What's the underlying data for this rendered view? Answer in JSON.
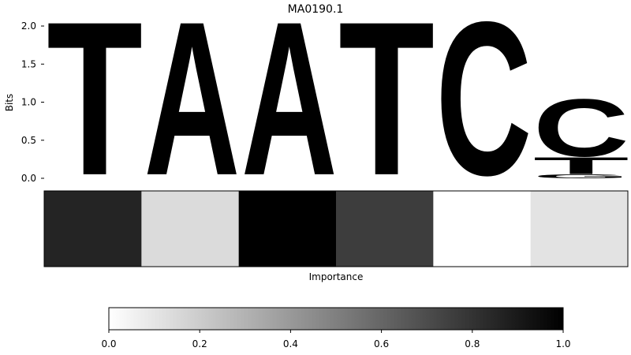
{
  "chart_data": [
    {
      "type": "sequence-logo",
      "title": "MA0190.1",
      "ylabel": "Bits",
      "ylim": [
        0,
        2.0
      ],
      "yticks": [
        "0.0",
        "0.5",
        "1.0",
        "1.5",
        "2.0"
      ],
      "letter_colors": {
        "A": "#4ea64a",
        "C": "#4a4af8",
        "G": "#f5b03c",
        "T": "#fa4c4e"
      },
      "positions": [
        {
          "stack": [
            {
              "letter": "T",
              "bits": 2.0
            }
          ]
        },
        {
          "stack": [
            {
              "letter": "A",
              "bits": 2.0
            }
          ]
        },
        {
          "stack": [
            {
              "letter": "A",
              "bits": 2.0
            }
          ]
        },
        {
          "stack": [
            {
              "letter": "T",
              "bits": 2.0
            }
          ]
        },
        {
          "stack": [
            {
              "letter": "C",
              "bits": 2.0
            }
          ]
        },
        {
          "stack": [
            {
              "letter": "G",
              "bits": 0.05
            },
            {
              "letter": "T",
              "bits": 0.22
            },
            {
              "letter": "C",
              "bits": 0.75
            }
          ]
        }
      ]
    },
    {
      "type": "heatmap",
      "xlabel": "Importance",
      "values": [
        0.86,
        0.14,
        1.0,
        0.76,
        0.0,
        0.11
      ],
      "colormap": "Greys",
      "colorbar": {
        "range": [
          0,
          1
        ],
        "ticks": [
          "0.0",
          "0.2",
          "0.4",
          "0.6",
          "0.8",
          "1.0"
        ]
      }
    }
  ]
}
